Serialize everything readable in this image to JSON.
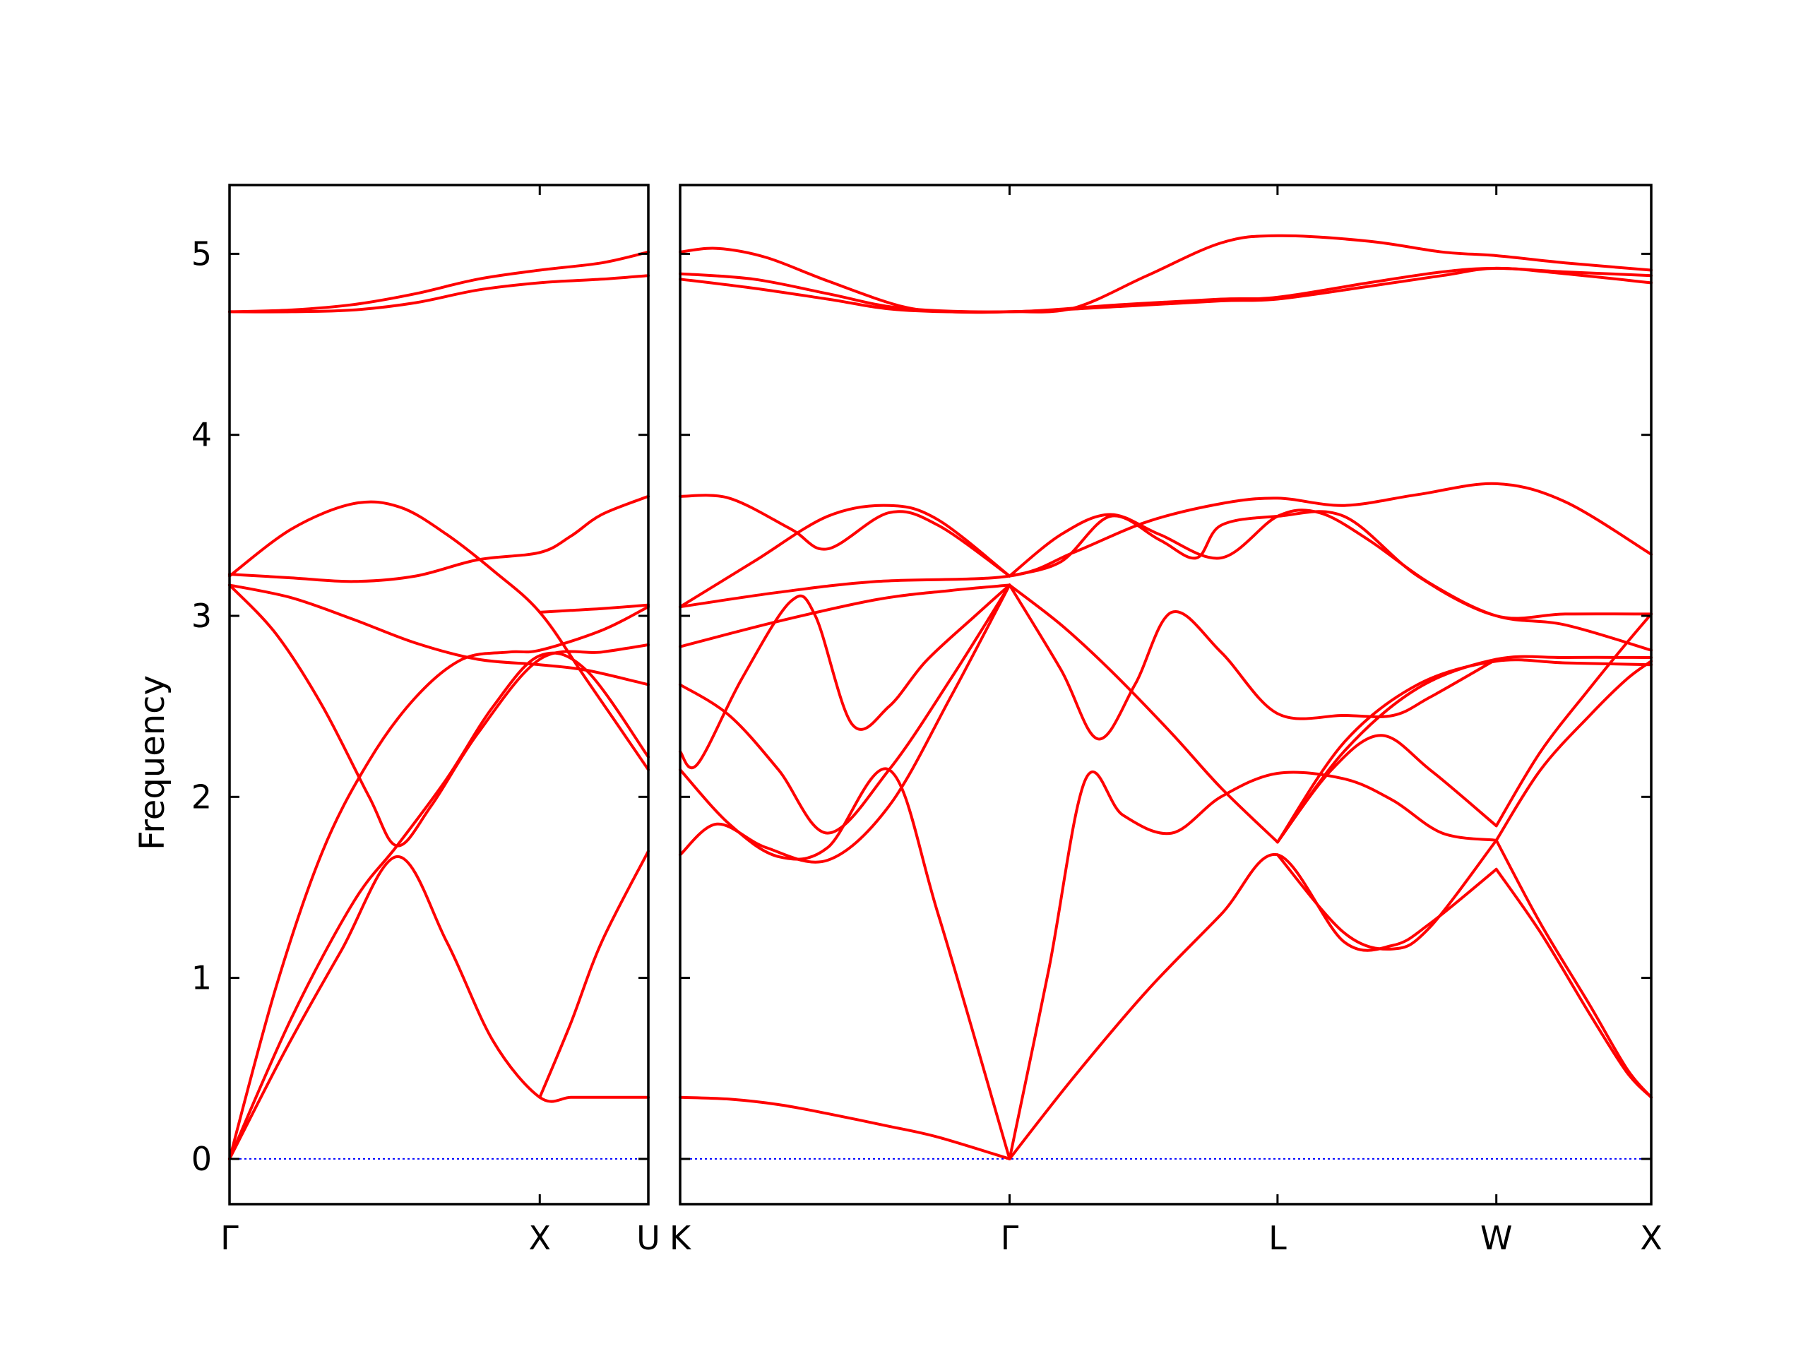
{
  "chart_data": {
    "type": "line",
    "title": "",
    "ylabel": "Frequency",
    "xlabel": "",
    "ylim": [
      -0.25,
      5.38
    ],
    "yticks": [
      0,
      1,
      2,
      3,
      4,
      5
    ],
    "grid": false,
    "colors": {
      "band": "#ff0000",
      "zero_line": "#0000ff",
      "axes": "#000000"
    },
    "panels": [
      {
        "xlim": [
          0,
          1.35
        ],
        "ticks": [
          {
            "x": 0,
            "label": "Γ"
          },
          {
            "x": 1.0,
            "label": "X"
          },
          {
            "x": 1.35,
            "label": "U"
          }
        ],
        "series": [
          {
            "x": [
              0,
              0.2,
              0.4,
              0.6,
              0.8,
              1.0,
              1.2,
              1.35
            ],
            "y": [
              4.68,
              4.69,
              4.72,
              4.78,
              4.86,
              4.91,
              4.95,
              5.01
            ]
          },
          {
            "x": [
              0,
              0.2,
              0.4,
              0.6,
              0.8,
              1.0,
              1.2,
              1.35
            ],
            "y": [
              4.68,
              4.68,
              4.69,
              4.73,
              4.8,
              4.84,
              4.86,
              4.88
            ]
          },
          {
            "x": [
              0,
              0.2,
              0.4,
              0.55,
              0.7,
              0.85,
              1.0,
              1.15,
              1.35
            ],
            "y": [
              3.22,
              3.48,
              3.62,
              3.6,
              3.45,
              3.25,
              3.02,
              2.65,
              2.15
            ]
          },
          {
            "x": [
              0,
              0.2,
              0.4,
              0.6,
              0.8,
              1.0,
              1.1,
              1.2,
              1.35
            ],
            "y": [
              3.23,
              3.21,
              3.19,
              3.22,
              3.31,
              3.35,
              3.44,
              3.56,
              3.66
            ]
          },
          {
            "x": [
              0,
              0.2,
              0.4,
              0.6,
              0.8,
              1.0,
              1.15,
              1.35
            ],
            "y": [
              3.17,
              3.1,
              2.98,
              2.85,
              2.76,
              2.73,
              2.7,
              2.62
            ]
          },
          {
            "x": [
              0,
              0.15,
              0.3,
              0.45,
              0.54,
              0.65,
              0.8,
              1.0,
              1.2,
              1.35
            ],
            "y": [
              3.17,
              2.9,
              2.5,
              2.0,
              1.73,
              1.95,
              2.35,
              2.76,
              2.8,
              2.84
            ]
          },
          {
            "x": [
              0,
              0.15,
              0.3,
              0.45,
              0.6,
              0.75,
              0.9,
              1.0,
              1.2,
              1.35
            ],
            "y": [
              0,
              0.95,
              1.7,
              2.2,
              2.55,
              2.76,
              2.8,
              2.81,
              2.92,
              3.05
            ]
          },
          {
            "x": [
              0,
              0.18,
              0.36,
              0.54,
              0.7,
              0.85,
              1.0,
              1.1,
              1.2,
              1.35
            ],
            "y": [
              0,
              0.6,
              1.15,
              1.67,
              1.2,
              0.65,
              0.34,
              0.34,
              0.34,
              0.34
            ]
          },
          {
            "x": [
              1.0,
              1.1,
              1.2,
              1.35
            ],
            "y": [
              0.34,
              0.75,
              1.2,
              1.7
            ]
          },
          {
            "x": [
              0,
              0.2,
              0.4,
              0.54,
              0.7,
              0.85,
              1.0,
              1.15,
              1.35
            ],
            "y": [
              0,
              0.78,
              1.42,
              1.73,
              2.1,
              2.5,
              2.78,
              2.7,
              2.22
            ]
          },
          {
            "x": [
              1.0,
              1.1,
              1.2,
              1.35
            ],
            "y": [
              3.02,
              3.03,
              3.04,
              3.06
            ]
          }
        ]
      },
      {
        "xlim": [
          0,
          3.95
        ],
        "ticks": [
          {
            "x": 0,
            "label": "K"
          },
          {
            "x": 1.34,
            "label": "Γ"
          },
          {
            "x": 2.43,
            "label": "L"
          },
          {
            "x": 3.32,
            "label": "W"
          },
          {
            "x": 3.95,
            "label": "X"
          }
        ],
        "series": [
          {
            "x": [
              0,
              0.15,
              0.35,
              0.6,
              0.9,
              1.1,
              1.34,
              1.6,
              1.9,
              2.2,
              2.43,
              2.8,
              3.1,
              3.32,
              3.6,
              3.95
            ],
            "y": [
              5.01,
              5.03,
              4.98,
              4.85,
              4.71,
              4.68,
              4.68,
              4.7,
              4.88,
              5.06,
              5.1,
              5.07,
              5.01,
              4.99,
              4.95,
              4.91
            ]
          },
          {
            "x": [
              0,
              0.3,
              0.6,
              0.9,
              1.34,
              1.8,
              2.2,
              2.43,
              2.8,
              3.1,
              3.32,
              3.6,
              3.95
            ],
            "y": [
              4.89,
              4.86,
              4.78,
              4.7,
              4.68,
              4.72,
              4.75,
              4.76,
              4.84,
              4.9,
              4.92,
              4.9,
              4.88
            ]
          },
          {
            "x": [
              0,
              0.3,
              0.6,
              0.9,
              1.34,
              1.8,
              2.2,
              2.43,
              2.8,
              3.1,
              3.32,
              3.6,
              3.95
            ],
            "y": [
              4.86,
              4.81,
              4.75,
              4.69,
              4.68,
              4.71,
              4.74,
              4.75,
              4.82,
              4.88,
              4.92,
              4.89,
              4.84
            ]
          },
          {
            "x": [
              0,
              0.2,
              0.45,
              0.6,
              0.85,
              1.05,
              1.34
            ],
            "y": [
              3.66,
              3.65,
              3.48,
              3.37,
              3.57,
              3.5,
              3.22
            ]
          },
          {
            "x": [
              0,
              0.3,
              0.6,
              0.85,
              1.05,
              1.34
            ],
            "y": [
              3.05,
              3.3,
              3.55,
              3.61,
              3.53,
              3.22
            ]
          },
          {
            "x": [
              0,
              0.4,
              0.8,
              1.34,
              1.6,
              1.9,
              2.2,
              2.43,
              2.7,
              3.0,
              3.32,
              3.6,
              3.95
            ],
            "y": [
              3.05,
              3.13,
              3.19,
              3.22,
              3.35,
              3.52,
              3.62,
              3.65,
              3.61,
              3.67,
              3.73,
              3.63,
              3.34
            ]
          },
          {
            "x": [
              1.34,
              1.55,
              1.75,
              1.95,
              2.2,
              2.43,
              2.6,
              2.8,
              3.05,
              3.32,
              3.6,
              3.95
            ],
            "y": [
              3.22,
              3.45,
              3.56,
              3.45,
              3.32,
              3.55,
              3.57,
              3.42,
              3.18,
              3.0,
              2.95,
              2.81
            ]
          },
          {
            "x": [
              1.34,
              1.55,
              1.75,
              1.95,
              2.1,
              2.2,
              2.43,
              2.7,
              3.0,
              3.32,
              3.6,
              3.95
            ],
            "y": [
              3.22,
              3.3,
              3.55,
              3.42,
              3.32,
              3.5,
              3.55,
              3.55,
              3.22,
              3.0,
              3.01,
              3.01
            ]
          },
          {
            "x": [
              0,
              0.4,
              0.8,
              1.1,
              1.34
            ],
            "y": [
              2.83,
              2.97,
              3.09,
              3.14,
              3.17
            ]
          },
          {
            "x": [
              0,
              0.07,
              0.25,
              0.45,
              0.55,
              0.7,
              0.85,
              1.0,
              1.2,
              1.34
            ],
            "y": [
              2.25,
              2.18,
              2.65,
              3.08,
              3.0,
              2.4,
              2.5,
              2.75,
              3.0,
              3.17
            ]
          },
          {
            "x": [
              0,
              0.15,
              0.35,
              0.6,
              0.85,
              1.1,
              1.34
            ],
            "y": [
              1.68,
              1.85,
              1.72,
              1.65,
              1.95,
              2.55,
              3.17
            ]
          },
          {
            "x": [
              0,
              0.2,
              0.4,
              0.6,
              0.85,
              1.1,
              1.34
            ],
            "y": [
              2.62,
              2.45,
              2.15,
              1.8,
              2.15,
              2.65,
              3.17
            ]
          },
          {
            "x": [
              0,
              0.2,
              0.4,
              0.6,
              0.85,
              1.05,
              1.34
            ],
            "y": [
              2.15,
              1.85,
              1.67,
              1.72,
              2.15,
              1.35,
              0.0
            ]
          },
          {
            "x": [
              0,
              0.2,
              0.4,
              0.6,
              0.85,
              1.05,
              1.34
            ],
            "y": [
              0.34,
              0.33,
              0.3,
              0.25,
              0.18,
              0.12,
              0.0
            ]
          },
          {
            "x": [
              1.34,
              1.55,
              1.75,
              2.0,
              2.2,
              2.43
            ],
            "y": [
              3.17,
              2.95,
              2.7,
              2.35,
              2.05,
              1.75
            ]
          },
          {
            "x": [
              1.34,
              1.55,
              1.7,
              1.85,
              2.0,
              2.2,
              2.43,
              2.7,
              2.9,
              3.05,
              3.32
            ],
            "y": [
              3.17,
              2.7,
              2.32,
              2.62,
              3.02,
              2.8,
              2.46,
              2.45,
              2.45,
              2.55,
              2.76
            ]
          },
          {
            "x": [
              1.34,
              1.5,
              1.65,
              1.8,
              2.0,
              2.2,
              2.43,
              2.7,
              2.9,
              3.1,
              3.32
            ],
            "y": [
              0.0,
              1.05,
              2.1,
              1.9,
              1.8,
              2.0,
              2.13,
              2.1,
              1.98,
              1.8,
              1.76
            ]
          },
          {
            "x": [
              1.34,
              1.6,
              1.9,
              2.2,
              2.43,
              2.7,
              2.9,
              3.05,
              3.32
            ],
            "y": [
              0.0,
              0.45,
              0.93,
              1.35,
              1.68,
              1.2,
              1.18,
              1.3,
              1.6
            ]
          },
          {
            "x": [
              2.43,
              2.7,
              2.9,
              3.05,
              3.32
            ],
            "y": [
              1.68,
              1.25,
              1.16,
              1.28,
              1.76
            ]
          },
          {
            "x": [
              2.43,
              2.65,
              2.85,
              3.05,
              3.32
            ],
            "y": [
              1.75,
              2.15,
              2.34,
              2.15,
              1.84
            ]
          },
          {
            "x": [
              2.43,
              2.7,
              3.0,
              3.32,
              3.6,
              3.95
            ],
            "y": [
              1.75,
              2.25,
              2.6,
              2.76,
              2.77,
              2.77
            ]
          },
          {
            "x": [
              2.43,
              2.7,
              3.0,
              3.32,
              3.6,
              3.95
            ],
            "y": [
              1.75,
              2.3,
              2.62,
              2.75,
              2.74,
              2.73
            ]
          },
          {
            "x": [
              3.32,
              3.5,
              3.7,
              3.85,
              3.95
            ],
            "y": [
              1.6,
              1.25,
              0.8,
              0.48,
              0.34
            ]
          },
          {
            "x": [
              3.32,
              3.5,
              3.7,
              3.85,
              3.95
            ],
            "y": [
              1.76,
              1.3,
              0.85,
              0.5,
              0.34
            ]
          },
          {
            "x": [
              3.32,
              3.5,
              3.7,
              3.85,
              3.95
            ],
            "y": [
              1.84,
              2.25,
              2.6,
              2.85,
              3.01
            ]
          },
          {
            "x": [
              3.32,
              3.5,
              3.7,
              3.85,
              3.95
            ],
            "y": [
              1.76,
              2.15,
              2.45,
              2.65,
              2.75
            ]
          }
        ]
      }
    ]
  }
}
